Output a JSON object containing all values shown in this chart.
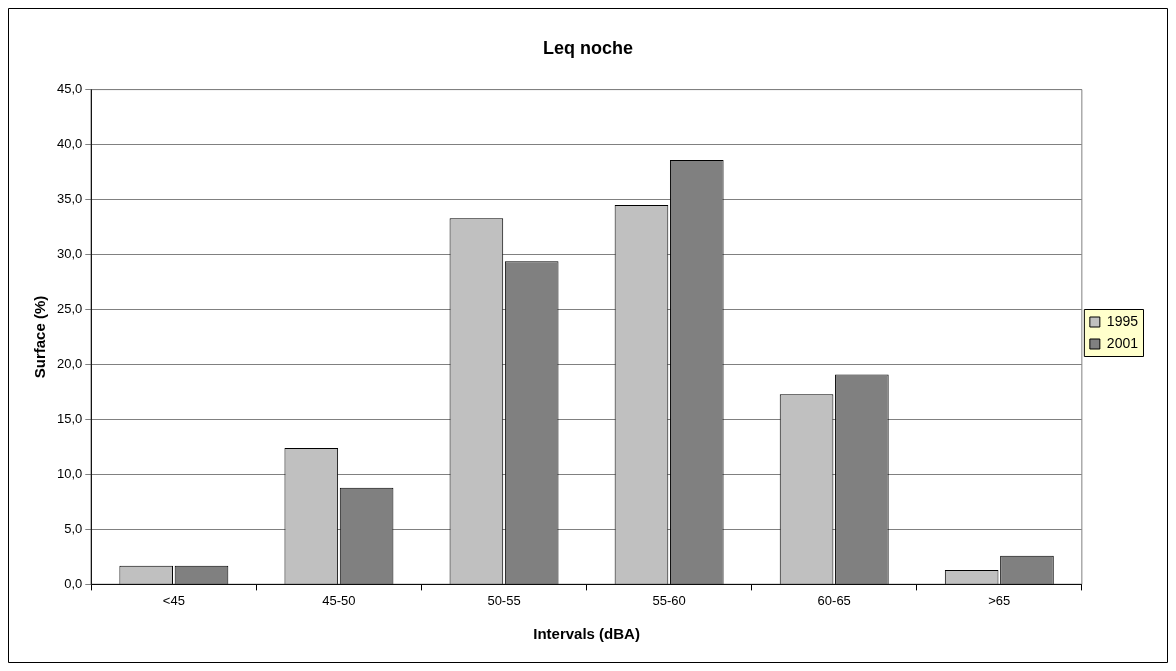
{
  "chart_data": {
    "type": "bar",
    "title": "Leq noche",
    "xlabel": "Intervals (dBA)",
    "ylabel": "Surface (%)",
    "categories": [
      "<45",
      "45-50",
      "50-55",
      "55-60",
      "60-65",
      ">65"
    ],
    "series": [
      {
        "name": "1995",
        "color": "#c0c0c0",
        "values": [
          1.7,
          12.4,
          33.3,
          34.5,
          17.3,
          1.3
        ]
      },
      {
        "name": "2001",
        "color": "#808080",
        "values": [
          1.7,
          8.8,
          29.4,
          38.6,
          19.1,
          2.6
        ]
      }
    ],
    "ylim": [
      0,
      45
    ],
    "yticks": [
      {
        "value": 0,
        "label": "0,0"
      },
      {
        "value": 5,
        "label": "5,0"
      },
      {
        "value": 10,
        "label": "10,0"
      },
      {
        "value": 15,
        "label": "15,0"
      },
      {
        "value": 20,
        "label": "20,0"
      },
      {
        "value": 25,
        "label": "25,0"
      },
      {
        "value": 30,
        "label": "30,0"
      },
      {
        "value": 35,
        "label": "35,0"
      },
      {
        "value": 40,
        "label": "40,0"
      },
      {
        "value": 45,
        "label": "45,0"
      }
    ],
    "grid": "y",
    "legend": "right"
  }
}
